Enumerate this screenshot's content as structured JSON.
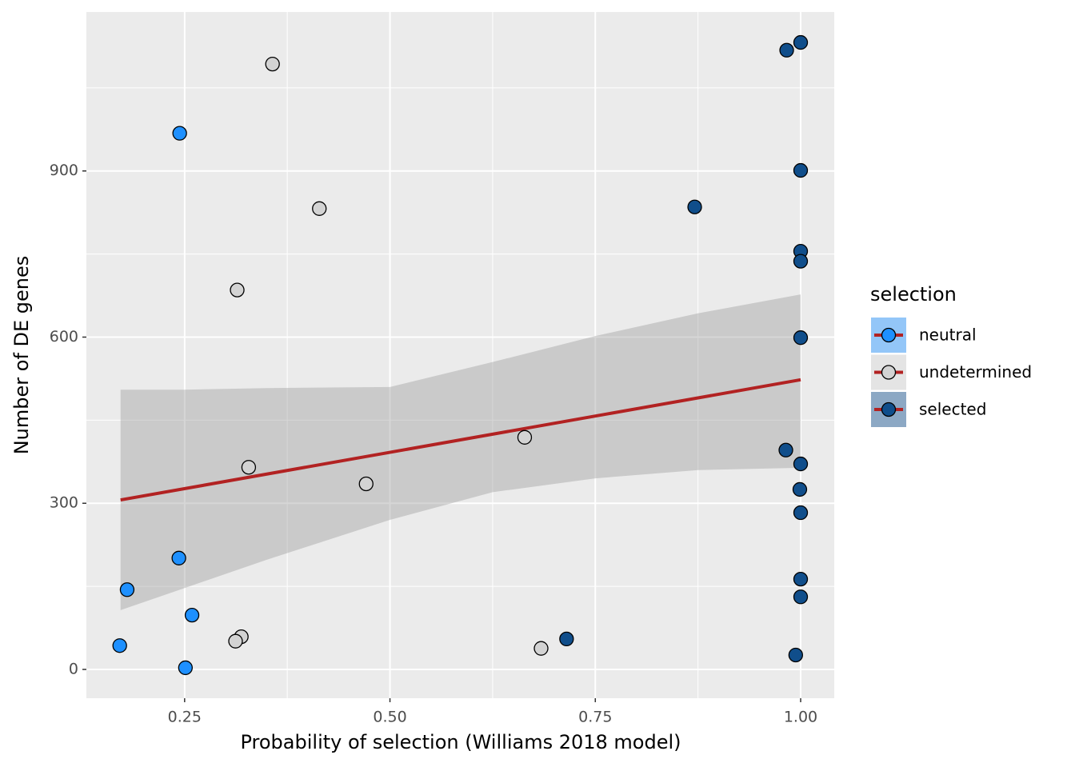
{
  "chart_data": {
    "type": "scatter",
    "x_label": "Probability of selection (Williams 2018 model)",
    "y_label": "Number of DE genes",
    "xlim": [
      0.1304,
      1.0409
    ],
    "ylim": [
      -52,
      1187
    ],
    "xticks": [
      {
        "value": 0.25,
        "label": "0.25"
      },
      {
        "value": 0.5,
        "label": "0.50"
      },
      {
        "value": 0.75,
        "label": "0.75"
      },
      {
        "value": 1.0,
        "label": "1.00"
      }
    ],
    "yticks": [
      0,
      300,
      600,
      900
    ],
    "minor_xticks": [
      0.375,
      0.625,
      0.875
    ],
    "minor_yticks": [
      150,
      450,
      750,
      1050
    ],
    "grid": true,
    "legend_title": "selection",
    "legend_position": "right",
    "series": [
      {
        "name": "neutral",
        "color": "#1E90FF",
        "x": [
          0.244,
          0.243,
          0.18,
          0.259,
          0.171,
          0.251
        ],
        "values": [
          968,
          201,
          144,
          98,
          43,
          3
        ]
      },
      {
        "name": "undetermined",
        "color": "#D3D3D3",
        "x": [
          0.357,
          0.414,
          0.314,
          0.328,
          0.471,
          0.664,
          0.319,
          0.312,
          0.684
        ],
        "values": [
          1093,
          832,
          685,
          365,
          335,
          419,
          59,
          51,
          38
        ]
      },
      {
        "name": "selected",
        "color": "#104E8B",
        "x": [
          1.0,
          0.983,
          1.0,
          0.871,
          1.0,
          1.0,
          1.0,
          0.982,
          1.0,
          0.999,
          1.0,
          1.0,
          1.0,
          0.994,
          0.715
        ],
        "values": [
          1132,
          1118,
          901,
          835,
          755,
          737,
          599,
          396,
          371,
          325,
          283,
          163,
          131,
          26,
          55
        ]
      }
    ],
    "fit": {
      "color": "#B22222",
      "x": [
        0.172,
        1.0
      ],
      "values": [
        306,
        523
      ]
    },
    "band": {
      "color": "#999999",
      "x": [
        0.172,
        0.25,
        0.35,
        0.5,
        0.625,
        0.75,
        0.875,
        1.0
      ],
      "ymin": [
        107,
        147,
        198,
        270,
        320,
        345,
        360,
        364
      ],
      "ymax": [
        505,
        505,
        508,
        510,
        555,
        602,
        643,
        677
      ]
    }
  }
}
